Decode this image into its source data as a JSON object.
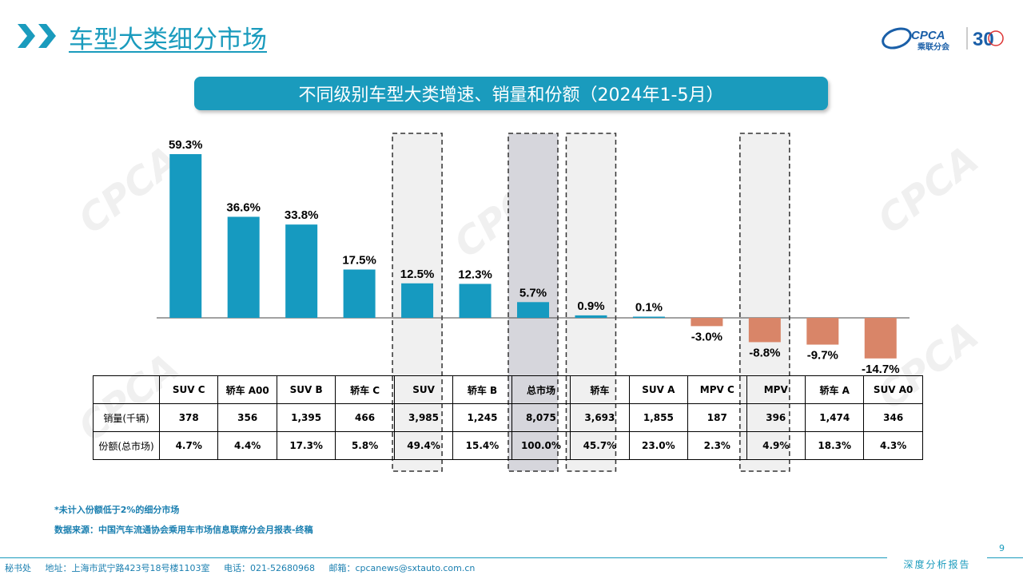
{
  "header": {
    "title": "车型大类细分市场",
    "logo_text": "CPCA",
    "logo_sub": "乘联分会",
    "anniv_text": "30"
  },
  "colors": {
    "accent": "#1a9bbd",
    "positive": "#169ac0",
    "negative": "#d98568",
    "highlight_gray": "#d6d6dc",
    "highlight_light": "#f0f0f0"
  },
  "chart_data": {
    "type": "bar",
    "title": "不同级别车型大类增速、销量和份额（2024年1-5月）",
    "categories": [
      "SUV C",
      "轿车 A00",
      "SUV B",
      "轿车 C",
      "SUV",
      "轿车 B",
      "总市场",
      "轿车",
      "SUV A",
      "MPV C",
      "MPV",
      "轿车 A",
      "SUV A0"
    ],
    "series": [
      {
        "values": [
          59.3,
          36.6,
          33.8,
          17.5,
          12.5,
          12.3,
          5.7,
          0.9,
          0.1,
          -3.0,
          -8.8,
          -9.7,
          -14.7
        ]
      }
    ],
    "value_labels": [
      "59.3%",
      "36.6%",
      "33.8%",
      "17.5%",
      "12.5%",
      "12.3%",
      "5.7%",
      "0.9%",
      "0.1%",
      "-3.0%",
      "-8.8%",
      "-9.7%",
      "-14.7%"
    ],
    "highlighted_categories": [
      "SUV",
      "总市场",
      "轿车",
      "MPV"
    ],
    "grid": false
  },
  "table": {
    "rows": [
      {
        "label": "销量(千辆)",
        "values": [
          "378",
          "356",
          "1,395",
          "466",
          "3,985",
          "1,245",
          "8,075",
          "3,693",
          "1,855",
          "187",
          "396",
          "1,474",
          "346"
        ]
      },
      {
        "label": "份额(总市场)",
        "values": [
          "4.7%",
          "4.4%",
          "17.3%",
          "5.8%",
          "49.4%",
          "15.4%",
          "100.0%",
          "45.7%",
          "23.0%",
          "2.3%",
          "4.9%",
          "18.3%",
          "4.3%"
        ]
      }
    ]
  },
  "notes": {
    "note1": "*未计入份额低于2%的细分市场",
    "note2": "数据来源：中国汽车流通协会乘用车市场信息联席分会月报表-终稿"
  },
  "page_number": "9",
  "footer": {
    "office": "秘书处",
    "address": "地址：上海市武宁路423号18号楼1103室",
    "phone": "电话：021-52680968",
    "email": "邮箱：cpcanews@sxtauto.com.cn",
    "report_type": "深度分析报告"
  }
}
